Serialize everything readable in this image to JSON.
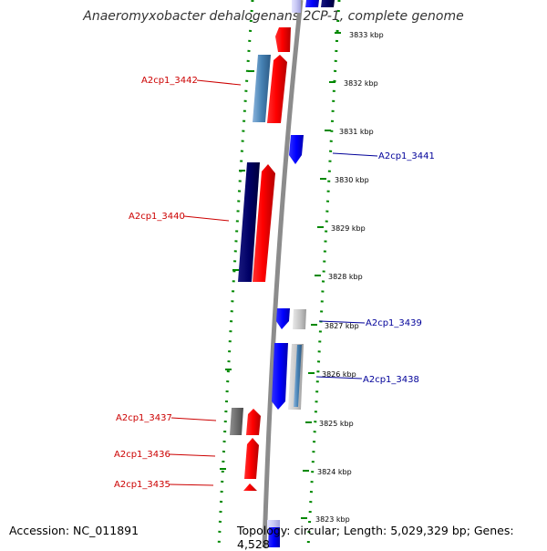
{
  "title": "Anaeromyxobacter dehalogenans 2CP-1, complete genome",
  "footer": {
    "accession": "Accession: NC_011891",
    "summary": "Topology: circular; Length: 5,029,329 bp; Genes: 4,528"
  },
  "ruler": {
    "unit": "kbp",
    "ticks": [
      "3833 kbp",
      "3832 kbp",
      "3831 kbp",
      "3830 kbp",
      "3829 kbp",
      "3828 kbp",
      "3827 kbp",
      "3826 kbp",
      "3825 kbp",
      "3824 kbp",
      "3823 kbp"
    ]
  },
  "colors": {
    "backbone": "#8c8c8c",
    "reverse_gene": "#ff0000",
    "forward_gene": "#0000ff",
    "reverse_label": "#cc0000",
    "forward_label": "#000099",
    "dotted_guide": "#008800"
  },
  "gene_labels": {
    "left": [
      "A2cp1_3442",
      "A2cp1_3440",
      "A2cp1_3437",
      "A2cp1_3436",
      "A2cp1_3435"
    ],
    "right": [
      "A2cp1_3441",
      "A2cp1_3439",
      "A2cp1_3438"
    ]
  }
}
